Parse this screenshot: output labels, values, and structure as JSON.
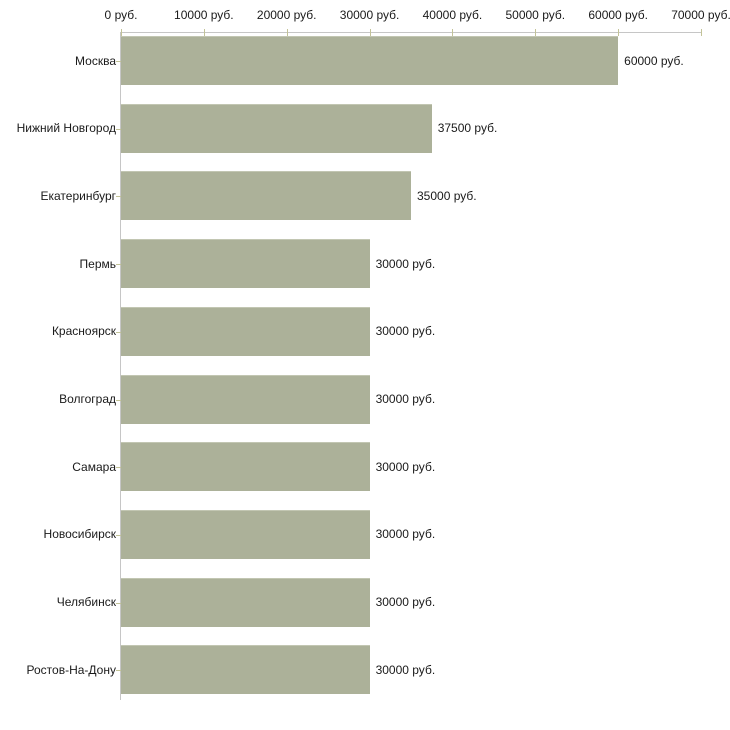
{
  "chart_data": {
    "type": "bar",
    "orientation": "horizontal",
    "unit": "руб.",
    "categories": [
      "Москва",
      "Нижний Новгород",
      "Екатеринбург",
      "Пермь",
      "Красноярск",
      "Волгоград",
      "Самара",
      "Новосибирск",
      "Челябинск",
      "Ростов-На-Дону"
    ],
    "values": [
      60000,
      37500,
      35000,
      30000,
      30000,
      30000,
      30000,
      30000,
      30000,
      30000
    ],
    "value_labels": [
      "60000 руб.",
      "37500 руб.",
      "35000 руб.",
      "30000 руб.",
      "30000 руб.",
      "30000 руб.",
      "30000 руб.",
      "30000 руб.",
      "30000 руб.",
      "30000 руб."
    ],
    "x_axis": {
      "position": "top",
      "range": [
        0,
        70000
      ],
      "tick_values": [
        0,
        10000,
        20000,
        30000,
        40000,
        50000,
        60000,
        70000
      ],
      "tick_labels": [
        "0 руб.",
        "10000 руб.",
        "20000 руб.",
        "30000 руб.",
        "40000 руб.",
        "50000 руб.",
        "60000 руб.",
        "70000 руб."
      ]
    },
    "legend": null,
    "grid": false,
    "colors": {
      "bar": "#acb199",
      "bar_top_edge": "#c2c6b2",
      "axis_line": "#c6c6c6",
      "tick": "#c3c398",
      "text": "#1a1a1a",
      "background": "#ffffff"
    }
  }
}
